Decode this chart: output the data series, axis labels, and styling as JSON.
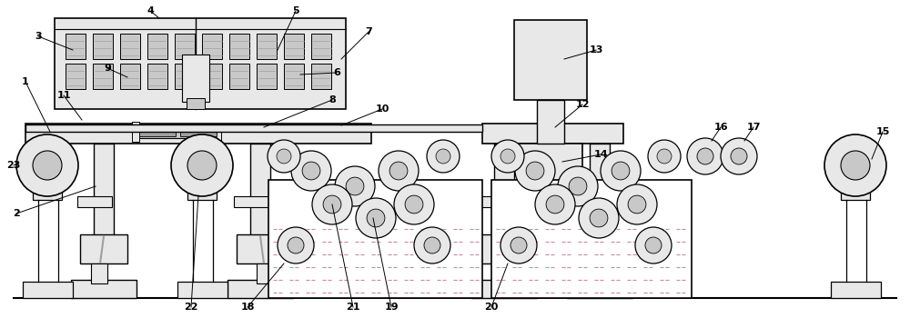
{
  "bg_color": "#ffffff",
  "line_color": "#000000",
  "gray1": "#e8e8e8",
  "gray2": "#c8c8c8",
  "gray3": "#a0a0a0",
  "gray4": "#808080",
  "slurry_fill": "#e8f5e8",
  "slurry_dash": "#888888",
  "pink_fill": "#f0d8d8",
  "label_fs": 8.0
}
